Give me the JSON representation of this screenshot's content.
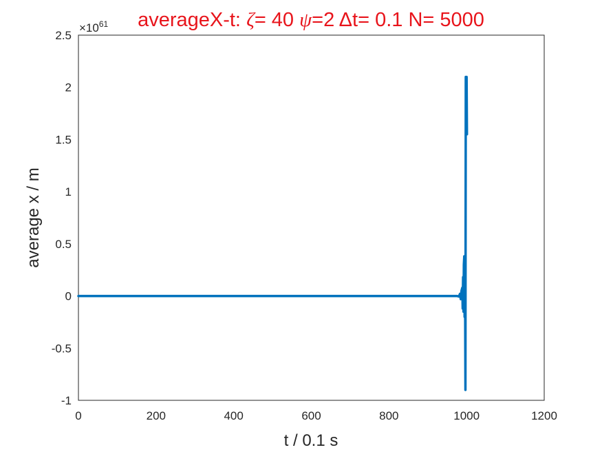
{
  "chart_data": {
    "type": "line",
    "title": "averageX-t:  ζ= 40 ψ=2 Δt= 0.1 N= 5000",
    "title_parts": [
      "averageX-t:  ",
      "ζ",
      "= 40 ",
      "ψ",
      "=2 ",
      "Δ",
      "t= 0.1 N= 5000"
    ],
    "xlabel": "t / 0.1 s",
    "ylabel": "average x / m",
    "exponent_label": "×10",
    "exponent_power": "61",
    "xlim": [
      0,
      1200
    ],
    "ylim": [
      -1,
      2.5
    ],
    "xticks": [
      0,
      200,
      400,
      600,
      800,
      1000,
      1200
    ],
    "xtick_labels": [
      "0",
      "200",
      "400",
      "600",
      "800",
      "1000",
      "1200"
    ],
    "yticks": [
      -1,
      -0.5,
      0,
      0.5,
      1,
      1.5,
      2,
      2.5
    ],
    "ytick_labels": [
      "-1",
      "-0.5",
      "0",
      "0.5",
      "1",
      "1.5",
      "2",
      "2.5"
    ],
    "grid": false,
    "series": [
      {
        "color": "#0072bd",
        "x": [
          0,
          960,
          975,
          980,
          983,
          985,
          987,
          989,
          990,
          991,
          992,
          993,
          994,
          995,
          996,
          997,
          998,
          999,
          1000,
          1001
        ],
        "y": [
          0,
          0,
          0,
          -0.005,
          0.02,
          -0.03,
          0.05,
          0.08,
          -0.12,
          0.18,
          -0.15,
          0.3,
          0.38,
          -0.2,
          0.3,
          -0.9,
          2.1,
          1.55,
          2.1,
          1.55
        ]
      }
    ]
  }
}
